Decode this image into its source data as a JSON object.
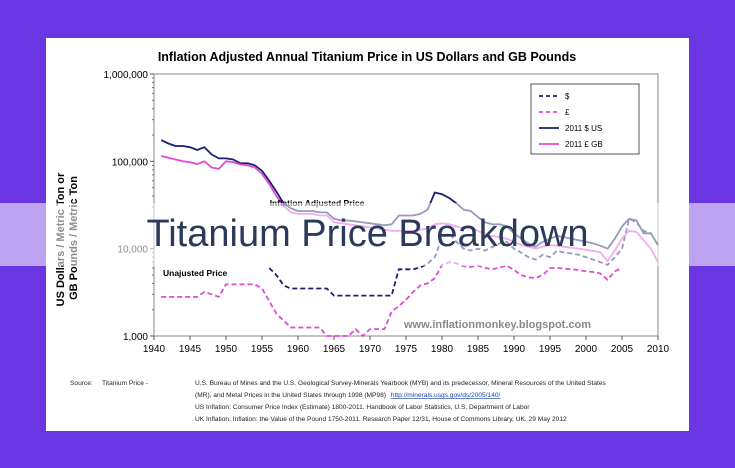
{
  "slide": {
    "title": "Titanium Price Breakdown",
    "background_color": "#6a35e3"
  },
  "chart_data": {
    "type": "line",
    "title": "Inflation Adjusted Annual Titanium Price in US Dollars and GB Pounds",
    "ylabel": "US Dollars / Metric Ton or GB Pounds / Metric Ton",
    "xlabel": "",
    "yscale": "log",
    "ylim": [
      1000,
      1000000
    ],
    "xlim": [
      1940,
      2010
    ],
    "x_ticks": [
      "1940",
      "1945",
      "1950",
      "1955",
      "1960",
      "1965",
      "1970",
      "1975",
      "1980",
      "1985",
      "1990",
      "1995",
      "2000",
      "2005",
      "2010"
    ],
    "y_ticks": [
      "1,000",
      "10,000",
      "100,000",
      "1,000,000"
    ],
    "grid": false,
    "legend_position": "top-right",
    "annotations": {
      "adjusted": "Inflation Adjusted Price",
      "unadjusted": "Unajusted Price",
      "watermark": "www.inflationmonkey.blogspot.com"
    },
    "x": [
      1941,
      1942,
      1943,
      1944,
      1945,
      1946,
      1947,
      1948,
      1949,
      1950,
      1951,
      1952,
      1953,
      1954,
      1955,
      1956,
      1957,
      1958,
      1959,
      1960,
      1961,
      1962,
      1963,
      1964,
      1965,
      1966,
      1967,
      1968,
      1969,
      1970,
      1971,
      1972,
      1973,
      1974,
      1975,
      1976,
      1977,
      1978,
      1979,
      1980,
      1981,
      1982,
      1983,
      1984,
      1985,
      1986,
      1987,
      1988,
      1989,
      1990,
      1991,
      1992,
      1993,
      1994,
      1995,
      1996,
      1997,
      1998,
      1999,
      2000,
      2001,
      2002,
      2003,
      2004,
      2005,
      2006,
      2007,
      2008,
      2009,
      2010
    ],
    "series": [
      {
        "name": "$",
        "color": "#1a1f6e",
        "style": "dashed",
        "values": [
          null,
          null,
          null,
          null,
          null,
          null,
          null,
          null,
          null,
          null,
          null,
          null,
          null,
          null,
          null,
          6000,
          5000,
          3800,
          3500,
          3500,
          3500,
          3500,
          3500,
          3500,
          2900,
          2900,
          2900,
          2900,
          2900,
          2900,
          2900,
          2900,
          2900,
          5800,
          5800,
          5800,
          6100,
          6700,
          8000,
          13500,
          15000,
          12000,
          10000,
          9500,
          10000,
          9500,
          10500,
          11500,
          12000,
          10000,
          9000,
          8000,
          7500,
          8500,
          8000,
          9500,
          9000,
          8800,
          8500,
          8000,
          7500,
          7000,
          6500,
          8000,
          10000,
          22000,
          20000,
          16000,
          15000,
          11000
        ]
      },
      {
        "name": "£",
        "color": "#e04ad8",
        "style": "dashed",
        "values": [
          2800,
          2800,
          2800,
          2800,
          2800,
          2800,
          3200,
          3000,
          2800,
          3900,
          3900,
          3900,
          3900,
          3900,
          3500,
          2500,
          1800,
          1500,
          1250,
          1250,
          1250,
          1250,
          1250,
          1000,
          1000,
          1000,
          1000,
          1200,
          1000,
          1200,
          1200,
          1200,
          1900,
          2200,
          2600,
          3200,
          3800,
          4000,
          4600,
          6500,
          7000,
          6800,
          6300,
          6200,
          6400,
          6000,
          5800,
          6100,
          6400,
          5700,
          5000,
          4700,
          4600,
          5000,
          6000,
          6000,
          5900,
          5800,
          5700,
          5500,
          5400,
          5200,
          4400,
          5500,
          6000,
          null,
          null,
          null,
          null,
          null
        ]
      },
      {
        "name": "2011 $ US",
        "color": "#1a1f6e",
        "style": "solid",
        "values": [
          175000,
          160000,
          150000,
          150000,
          145000,
          135000,
          145000,
          120000,
          108000,
          108000,
          105000,
          95000,
          95000,
          90000,
          78000,
          60000,
          45000,
          33000,
          29000,
          27000,
          27000,
          27000,
          26000,
          26000,
          22000,
          21000,
          21000,
          20500,
          20000,
          19500,
          19000,
          18500,
          19000,
          24000,
          24000,
          24000,
          25000,
          28000,
          44000,
          42000,
          38000,
          33000,
          28000,
          27000,
          23000,
          20000,
          19000,
          19000,
          18000,
          15000,
          13000,
          11500,
          10500,
          12000,
          13000,
          14000,
          13500,
          13000,
          12500,
          12000,
          11500,
          10800,
          10000,
          13000,
          18000,
          22000,
          21000,
          15000,
          15000,
          11000
        ]
      },
      {
        "name": "2011 £ GB",
        "color": "#e04ad8",
        "style": "solid",
        "values": [
          115000,
          110000,
          105000,
          100000,
          98000,
          93000,
          100000,
          85000,
          82000,
          100000,
          98000,
          92000,
          90000,
          85000,
          72000,
          55000,
          40000,
          31000,
          26000,
          25000,
          25000,
          25000,
          24000,
          24000,
          20000,
          19500,
          19000,
          18500,
          18000,
          17500,
          17000,
          16500,
          16000,
          16000,
          16000,
          16000,
          16500,
          17000,
          19000,
          19500,
          19000,
          18000,
          17000,
          17000,
          16000,
          14500,
          14000,
          13500,
          13000,
          12000,
          11000,
          10500,
          10000,
          10500,
          11000,
          10800,
          10500,
          10200,
          10000,
          9700,
          9400,
          9100,
          7200,
          9500,
          13000,
          16000,
          15500,
          12500,
          10000,
          7000
        ]
      }
    ]
  },
  "source": {
    "label": "Source:",
    "item": "Titanium Price  -",
    "line1": "U.S. Bureau of Mines and the U.S. Geological Survey-Minerals Yearbook (MYB) and its predecessor, Mineral Resources of the United States",
    "line2": "(MR), and Metal Prices in the United States through 1998 (MP98)",
    "link": "http://minerals.usgs.gov/ds/2005/140/",
    "line3": "US Inflation:  Consumer Price Index (Estimate) 1800-2011. Handbook of Labor Statistics, U.S. Department of Labor",
    "line4": "UK Inflation:  Inflation: the Value of the Pound 1750-2011. Research Paper  12/31, House of Commons Library, UK. 29 May 2012"
  }
}
